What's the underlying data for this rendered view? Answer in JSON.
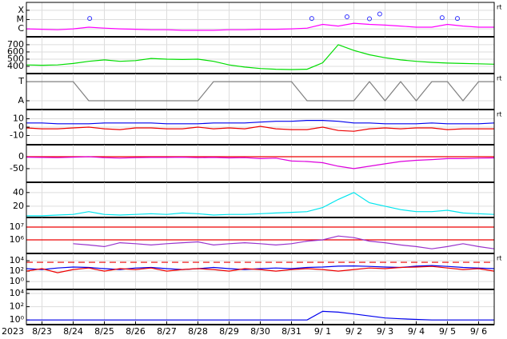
{
  "chart_data": [
    {
      "type": "line",
      "log": true,
      "ylim": [
        1.4e-07,
        0.0007
      ],
      "yticks": [
        {
          "value": 0.0001,
          "label": "X"
        },
        {
          "value": 1e-05,
          "label": "M"
        },
        {
          "value": 1e-06,
          "label": "C"
        }
      ],
      "side_label": "rt",
      "x": [
        0,
        0.5,
        1,
        1.5,
        2,
        2.5,
        3,
        3.5,
        4,
        4.5,
        5,
        5.5,
        6,
        6.5,
        7,
        7.5,
        8,
        8.5,
        9,
        9.5,
        10,
        10.5,
        11,
        11.5,
        12,
        12.5,
        13,
        13.5,
        14,
        14.5,
        15
      ],
      "series": [
        {
          "color": "#ff00ff",
          "values": [
            1e-06,
            9e-07,
            8e-07,
            1e-06,
            1.5e-06,
            1.2e-06,
            1e-06,
            9e-07,
            8e-07,
            8e-07,
            7e-07,
            7e-07,
            7e-07,
            8e-07,
            8e-07,
            9e-07,
            9e-07,
            1e-06,
            1.2e-06,
            3e-06,
            2e-06,
            4e-06,
            3e-06,
            2.5e-06,
            2e-06,
            1.5e-06,
            1.5e-06,
            3e-06,
            2e-06,
            1.5e-06,
            1.5e-06
          ]
        },
        {
          "color": "#3030ff",
          "style": "circle",
          "x": [
            2.03,
            9.15,
            10.28,
            11.0,
            11.33,
            13.33,
            13.82
          ],
          "values": [
            1.3e-05,
            1.3e-05,
            2e-05,
            1.2e-05,
            4e-05,
            1.6e-05,
            1.3e-05
          ]
        }
      ]
    },
    {
      "type": "line",
      "log": false,
      "ylim": [
        300,
        810
      ],
      "yticks": [
        400,
        500,
        600,
        700
      ],
      "x": [
        0,
        0.5,
        1,
        1.5,
        2,
        2.5,
        3,
        3.5,
        4,
        4.5,
        5,
        5.5,
        6,
        6.5,
        7,
        7.5,
        8,
        8.5,
        9,
        9.5,
        10,
        10.5,
        11,
        11.5,
        12,
        12.5,
        13,
        13.5,
        14,
        14.5,
        15
      ],
      "series": [
        {
          "color": "#00dd00",
          "values": [
            420,
            415,
            420,
            440,
            470,
            490,
            470,
            480,
            510,
            500,
            495,
            500,
            470,
            420,
            390,
            370,
            360,
            355,
            360,
            450,
            700,
            620,
            560,
            520,
            490,
            470,
            455,
            445,
            440,
            435,
            430
          ]
        }
      ]
    },
    {
      "type": "line",
      "log": false,
      "ylim": [
        -0.46,
        1.42
      ],
      "yticks": [
        {
          "value": 1,
          "label": "T"
        },
        {
          "value": 0,
          "label": "A"
        }
      ],
      "side_label": "rt",
      "x": [
        0,
        0.5,
        1,
        1.5,
        2,
        2.5,
        3,
        3.5,
        4,
        4.5,
        5,
        5.5,
        6,
        6.5,
        7,
        7.5,
        8,
        8.5,
        9,
        9.5,
        10,
        10.5,
        11,
        11.5,
        12,
        12.5,
        13,
        13.5,
        14,
        14.5,
        15
      ],
      "series": [
        {
          "color": "#808080",
          "values": [
            1,
            1,
            1,
            1,
            0,
            0,
            0,
            0,
            0,
            0,
            0,
            0,
            1,
            1,
            1,
            1,
            1,
            1,
            0,
            0,
            0,
            0,
            1,
            0,
            1,
            0,
            1,
            1,
            0,
            1,
            1
          ]
        }
      ]
    },
    {
      "type": "line",
      "log": false,
      "ylim": [
        -21,
        21
      ],
      "yticks": [
        10,
        0,
        -10
      ],
      "side_label": "rt",
      "x": [
        0,
        0.5,
        1,
        1.5,
        2,
        2.5,
        3,
        3.5,
        4,
        4.5,
        5,
        5.5,
        6,
        6.5,
        7,
        7.5,
        8,
        8.5,
        9,
        9.5,
        10,
        10.5,
        11,
        11.5,
        12,
        12.5,
        13,
        13.5,
        14,
        14.5,
        15
      ],
      "series": [
        {
          "color": "#0000ee",
          "values": [
            5,
            5,
            4,
            4,
            4,
            5,
            5,
            5,
            5,
            4,
            4,
            4,
            5,
            5,
            5,
            6,
            7,
            7,
            8,
            8,
            7,
            5,
            5,
            4,
            4,
            4,
            5,
            4,
            4,
            4,
            5
          ]
        },
        {
          "color": "#ee0000",
          "values": [
            -1,
            -2,
            -2,
            -1,
            0,
            -2,
            -3,
            -1,
            -1,
            -2,
            -2,
            0,
            -2,
            -1,
            -2,
            1,
            -2,
            -3,
            -3,
            0,
            -4,
            -5,
            -2,
            -1,
            -2,
            -1,
            -1,
            -3,
            -2,
            -2,
            -2
          ]
        }
      ]
    },
    {
      "type": "line",
      "log": false,
      "ylim": [
        -107,
        50
      ],
      "yticks": [
        0,
        -50
      ],
      "hlines": [
        {
          "value": 0,
          "color": "#ee0000"
        }
      ],
      "x": [
        0,
        0.5,
        1,
        1.5,
        2,
        2.5,
        3,
        3.5,
        4,
        4.5,
        5,
        5.5,
        6,
        6.5,
        7,
        7.5,
        8,
        8.5,
        9,
        9.5,
        10,
        10.5,
        11,
        11.5,
        12,
        12.5,
        13,
        13.5,
        14,
        14.5,
        15
      ],
      "series": [
        {
          "color": "#dd00dd",
          "values": [
            -2,
            -3,
            -4,
            -2,
            0,
            -4,
            -6,
            -4,
            -3,
            -3,
            -2,
            -4,
            -3,
            -5,
            -4,
            -8,
            -6,
            -18,
            -20,
            -25,
            -40,
            -50,
            -40,
            -30,
            -20,
            -15,
            -12,
            -8,
            -8,
            -6,
            -5
          ]
        }
      ]
    },
    {
      "type": "line",
      "log": false,
      "ylim": [
        3.5,
        55
      ],
      "yticks": [
        40,
        20
      ],
      "x": [
        0,
        0.5,
        1,
        1.5,
        2,
        2.5,
        3,
        3.5,
        4,
        4.5,
        5,
        5.5,
        6,
        6.5,
        7,
        7.5,
        8,
        8.5,
        9,
        9.5,
        10,
        10.5,
        11,
        11.5,
        12,
        12.5,
        13,
        13.5,
        14,
        14.5,
        15
      ],
      "series": [
        {
          "color": "#00e5ee",
          "values": [
            6,
            6,
            7,
            8,
            12,
            8,
            7,
            8,
            9,
            8,
            10,
            9,
            7,
            8,
            8,
            9,
            10,
            11,
            12,
            18,
            30,
            40,
            25,
            20,
            15,
            12,
            12,
            14,
            10,
            9,
            8
          ]
        }
      ]
    },
    {
      "type": "line",
      "log": true,
      "ylim": [
        87000,
        56000000
      ],
      "yticks": [
        {
          "value": 10000000,
          "label": "10⁷"
        },
        {
          "value": 1000000,
          "label": "10⁶"
        }
      ],
      "hlines": [
        {
          "value": 10000000,
          "color": "#ee0000"
        },
        {
          "value": 1000000,
          "color": "#ee0000"
        }
      ],
      "x": [
        0,
        0.5,
        1,
        1.5,
        2,
        2.5,
        3,
        3.5,
        4,
        4.5,
        5,
        5.5,
        6,
        6.5,
        7,
        7.5,
        8,
        8.5,
        9,
        9.5,
        10,
        10.5,
        11,
        11.5,
        12,
        12.5,
        13,
        13.5,
        14,
        14.5,
        15
      ],
      "series": [
        {
          "color": "#9932cc",
          "values": [
            null,
            null,
            null,
            500000,
            400000,
            300000,
            600000,
            500000,
            400000,
            500000,
            600000,
            700000,
            400000,
            500000,
            600000,
            500000,
            400000,
            500000,
            800000,
            1000000,
            2000000,
            1500000,
            800000,
            600000,
            400000,
            300000,
            200000,
            300000,
            500000,
            300000,
            200000
          ]
        }
      ]
    },
    {
      "type": "line",
      "log": true,
      "ylim": [
        0.03,
        250000
      ],
      "yticks": [
        {
          "value": 10000,
          "label": "10⁴"
        },
        {
          "value": 100,
          "label": "10²"
        },
        {
          "value": 1,
          "label": "10⁰"
        }
      ],
      "hlines": [
        {
          "value": 5000,
          "color": "#ee0000",
          "dash": true
        }
      ],
      "side_label": "rt",
      "x": [
        0,
        0.5,
        1,
        1.5,
        2,
        2.5,
        3,
        3.5,
        4,
        4.5,
        5,
        5.5,
        6,
        6.5,
        7,
        7.5,
        8,
        8.5,
        9,
        9.5,
        10,
        10.5,
        11,
        11.5,
        12,
        12.5,
        13,
        13.5,
        14,
        14.5,
        15
      ],
      "series": [
        {
          "color": "#0000ee",
          "values": [
            300,
            200,
            400,
            600,
            500,
            300,
            200,
            400,
            500,
            300,
            200,
            300,
            500,
            300,
            200,
            300,
            400,
            300,
            500,
            600,
            900,
            1000,
            800,
            600,
            500,
            900,
            1200,
            800,
            500,
            400,
            300
          ]
        },
        {
          "color": "#ee0000",
          "values": [
            100,
            300,
            50,
            200,
            400,
            100,
            300,
            200,
            400,
            100,
            200,
            300,
            200,
            100,
            300,
            200,
            100,
            200,
            300,
            200,
            100,
            200,
            400,
            300,
            500,
            600,
            800,
            400,
            200,
            300,
            100
          ]
        }
      ]
    },
    {
      "type": "line",
      "log": true,
      "ylim": [
        0.2,
        40000
      ],
      "yticks": [
        {
          "value": 10000,
          "label": "10⁴"
        },
        {
          "value": 100,
          "label": "10²"
        },
        {
          "value": 1,
          "label": "10⁰"
        }
      ],
      "year": "2023",
      "xlim": [
        0,
        15
      ],
      "xticks": [
        {
          "value": 0.5,
          "label": "8/23"
        },
        {
          "value": 1.5,
          "label": "8/24"
        },
        {
          "value": 2.5,
          "label": "8/25"
        },
        {
          "value": 3.5,
          "label": "8/26"
        },
        {
          "value": 4.5,
          "label": "8/27"
        },
        {
          "value": 5.5,
          "label": "8/28"
        },
        {
          "value": 6.5,
          "label": "8/29"
        },
        {
          "value": 7.5,
          "label": "8/30"
        },
        {
          "value": 8.5,
          "label": "8/31"
        },
        {
          "value": 9.5,
          "label": "9/ 1"
        },
        {
          "value": 10.5,
          "label": "9/ 2"
        },
        {
          "value": 11.5,
          "label": "9/ 3"
        },
        {
          "value": 12.5,
          "label": "9/ 4"
        },
        {
          "value": 13.5,
          "label": "9/ 5"
        },
        {
          "value": 14.5,
          "label": "9/ 6"
        }
      ],
      "x": [
        0,
        0.5,
        1,
        1.5,
        2,
        2.5,
        3,
        3.5,
        4,
        4.5,
        5,
        5.5,
        6,
        6.5,
        7,
        7.5,
        8,
        8.5,
        9,
        9.5,
        10,
        10.5,
        11,
        11.5,
        12,
        12.5,
        13,
        13.5,
        14,
        14.5,
        15
      ],
      "series": [
        {
          "color": "#0000ee",
          "values": [
            1,
            1,
            1,
            1,
            1,
            1,
            1,
            1,
            1,
            1,
            1,
            1,
            1,
            1,
            1,
            1,
            1,
            1,
            1,
            20,
            15,
            8,
            4,
            2,
            1.5,
            1.2,
            1,
            1,
            1,
            1,
            1
          ]
        }
      ]
    }
  ]
}
